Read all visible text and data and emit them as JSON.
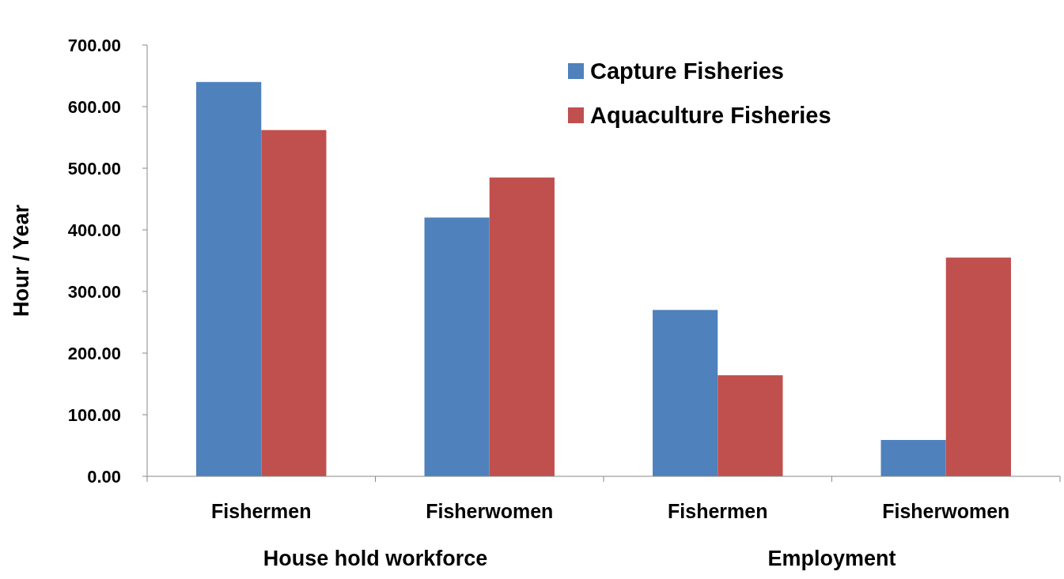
{
  "chart_data": {
    "type": "bar",
    "ylabel": "Hour / Year",
    "categories": [
      "Fishermen",
      "Fisherwomen",
      "Fishermen",
      "Fisherwomen"
    ],
    "series": [
      {
        "name": "Capture Fisheries",
        "color": "#4f81bd",
        "values": [
          640,
          420,
          270,
          59
        ]
      },
      {
        "name": "Aquaculture Fisheries",
        "color": "#c0504d",
        "values": [
          562,
          485,
          164,
          355
        ]
      }
    ],
    "ylim": [
      0,
      700
    ],
    "yticks": [
      {
        "value": 0,
        "label": "0.00"
      },
      {
        "value": 100,
        "label": "100.00"
      },
      {
        "value": 200,
        "label": "200.00"
      },
      {
        "value": 300,
        "label": "300.00"
      },
      {
        "value": 400,
        "label": "400.00"
      },
      {
        "value": 500,
        "label": "500.00"
      },
      {
        "value": 600,
        "label": "600.00"
      },
      {
        "value": 700,
        "label": "700.00"
      }
    ],
    "annotations": [
      "House hold workforce",
      "Employment"
    ],
    "grid": false,
    "legend": "top right"
  }
}
